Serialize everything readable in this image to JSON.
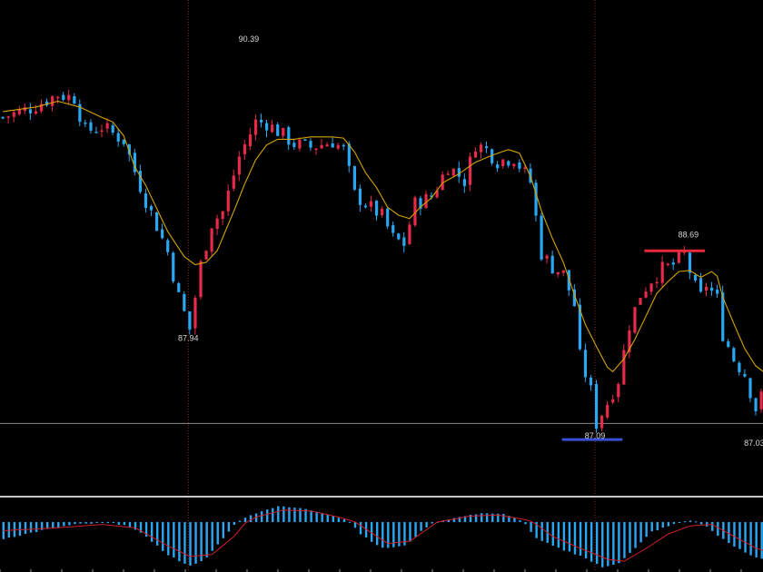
{
  "chart_data": [
    {
      "type": "candlestick",
      "title": "",
      "ylim": [
        86.5,
        90.8
      ],
      "grid": false,
      "colors": {
        "up": "#e8294a",
        "down": "#2aa7f3",
        "ma": "#d4a300",
        "support": "#3a4fd8",
        "resistance": "#e8293a",
        "vline": "#8a1f1f",
        "hline": "#8a8a8a"
      },
      "annotations": [
        {
          "text": "90.39",
          "index": 45,
          "value": 90.39
        },
        {
          "text": "87.94",
          "index": 34,
          "value": 87.94
        },
        {
          "text": "88.69",
          "index": 125,
          "value": 88.69
        },
        {
          "text": "87.09",
          "index": 108,
          "value": 87.09
        },
        {
          "text": "87.03",
          "index": 137,
          "value": 87.03
        }
      ],
      "reference_level": 87.12,
      "resistance_line": {
        "value": 88.62,
        "from_index": 117,
        "to_index": 128
      },
      "support_line": {
        "value": 86.98,
        "from_index": 102,
        "to_index": 113
      },
      "vertical_marker_indices": [
        34,
        108
      ],
      "close_path": [
        [
          0,
          89.78
        ],
        [
          5,
          89.86
        ],
        [
          10,
          89.98
        ],
        [
          13,
          89.95
        ],
        [
          15,
          89.66
        ],
        [
          18,
          89.7
        ],
        [
          22,
          89.58
        ],
        [
          24,
          89.31
        ],
        [
          26,
          89.06
        ],
        [
          28,
          88.84
        ],
        [
          30,
          88.61
        ],
        [
          32,
          88.22
        ],
        [
          34,
          87.94
        ],
        [
          36,
          88.5
        ],
        [
          38,
          88.86
        ],
        [
          40,
          88.96
        ],
        [
          43,
          89.44
        ],
        [
          46,
          89.74
        ],
        [
          48,
          89.73
        ],
        [
          50,
          89.66
        ],
        [
          53,
          89.55
        ],
        [
          56,
          89.52
        ],
        [
          60,
          89.57
        ],
        [
          62,
          89.5
        ],
        [
          64,
          89.11
        ],
        [
          66,
          89.03
        ],
        [
          69,
          88.92
        ],
        [
          71,
          88.73
        ],
        [
          73,
          88.68
        ],
        [
          75,
          89.03
        ],
        [
          78,
          89.09
        ],
        [
          81,
          89.36
        ],
        [
          84,
          89.23
        ],
        [
          86,
          89.55
        ],
        [
          88,
          89.5
        ],
        [
          90,
          89.4
        ],
        [
          93,
          89.43
        ],
        [
          96,
          89.22
        ],
        [
          98,
          88.6
        ],
        [
          100,
          88.48
        ],
        [
          102,
          88.42
        ],
        [
          104,
          88.15
        ],
        [
          105,
          87.7
        ],
        [
          107,
          87.4
        ],
        [
          108,
          87.12
        ],
        [
          110,
          87.3
        ],
        [
          112,
          87.5
        ],
        [
          114,
          87.98
        ],
        [
          116,
          88.24
        ],
        [
          118,
          88.37
        ],
        [
          120,
          88.46
        ],
        [
          122,
          88.5
        ],
        [
          124,
          88.59
        ],
        [
          126,
          88.3
        ],
        [
          127,
          88.22
        ],
        [
          128,
          88.33
        ],
        [
          130,
          88.2
        ],
        [
          131,
          87.9
        ],
        [
          133,
          87.68
        ],
        [
          135,
          87.55
        ],
        [
          137,
          87.25
        ],
        [
          139,
          87.45
        ]
      ],
      "moving_average": [
        [
          0,
          89.83
        ],
        [
          6,
          89.87
        ],
        [
          10,
          89.92
        ],
        [
          14,
          89.87
        ],
        [
          18,
          89.78
        ],
        [
          20,
          89.74
        ],
        [
          22,
          89.62
        ],
        [
          24,
          89.35
        ],
        [
          26,
          89.19
        ],
        [
          28,
          88.99
        ],
        [
          30,
          88.79
        ],
        [
          33,
          88.57
        ],
        [
          35,
          88.5
        ],
        [
          37,
          88.52
        ],
        [
          39,
          88.62
        ],
        [
          42,
          88.96
        ],
        [
          44,
          89.2
        ],
        [
          46,
          89.41
        ],
        [
          48,
          89.54
        ],
        [
          50,
          89.59
        ],
        [
          53,
          89.59
        ],
        [
          56,
          89.61
        ],
        [
          60,
          89.61
        ],
        [
          62,
          89.6
        ],
        [
          64,
          89.48
        ],
        [
          66,
          89.3
        ],
        [
          68,
          89.17
        ],
        [
          70,
          89.0
        ],
        [
          72,
          88.93
        ],
        [
          74,
          88.9
        ],
        [
          76,
          89.0
        ],
        [
          78,
          89.08
        ],
        [
          80,
          89.21
        ],
        [
          83,
          89.29
        ],
        [
          86,
          89.39
        ],
        [
          89,
          89.45
        ],
        [
          92,
          89.5
        ],
        [
          94,
          89.47
        ],
        [
          96,
          89.27
        ],
        [
          98,
          88.97
        ],
        [
          100,
          88.73
        ],
        [
          102,
          88.52
        ],
        [
          104,
          88.24
        ],
        [
          106,
          87.98
        ],
        [
          108,
          87.79
        ],
        [
          110,
          87.61
        ],
        [
          111,
          87.57
        ],
        [
          113,
          87.68
        ],
        [
          115,
          87.85
        ],
        [
          117,
          88.05
        ],
        [
          119,
          88.25
        ],
        [
          121,
          88.35
        ],
        [
          123,
          88.44
        ],
        [
          125,
          88.45
        ],
        [
          127,
          88.39
        ],
        [
          129,
          88.44
        ],
        [
          130,
          88.4
        ],
        [
          131,
          88.22
        ],
        [
          133,
          87.99
        ],
        [
          135,
          87.77
        ],
        [
          137,
          87.62
        ],
        [
          139,
          87.55
        ]
      ]
    },
    {
      "type": "histogram",
      "title": "",
      "ylim": [
        -1,
        1
      ],
      "colors": {
        "bars": "#2aa7f3",
        "signal": "#d0202a"
      },
      "histogram_path": [
        [
          0,
          -0.35
        ],
        [
          8,
          -0.15
        ],
        [
          13,
          -0.05
        ],
        [
          18,
          -0.02
        ],
        [
          22,
          -0.05
        ],
        [
          26,
          -0.3
        ],
        [
          30,
          -0.7
        ],
        [
          34,
          -0.92
        ],
        [
          37,
          -0.75
        ],
        [
          41,
          -0.2
        ],
        [
          45,
          0.35
        ],
        [
          50,
          0.8
        ],
        [
          54,
          0.7
        ],
        [
          58,
          0.45
        ],
        [
          62,
          0.15
        ],
        [
          65,
          -0.25
        ],
        [
          69,
          -0.55
        ],
        [
          73,
          -0.5
        ],
        [
          77,
          -0.1
        ],
        [
          82,
          0.2
        ],
        [
          87,
          0.45
        ],
        [
          91,
          0.4
        ],
        [
          94,
          0.1
        ],
        [
          97,
          -0.35
        ],
        [
          101,
          -0.55
        ],
        [
          105,
          -0.7
        ],
        [
          109,
          -0.95
        ],
        [
          112,
          -0.85
        ],
        [
          115,
          -0.55
        ],
        [
          118,
          -0.2
        ],
        [
          122,
          -0.05
        ],
        [
          125,
          0.08
        ],
        [
          128,
          -0.1
        ],
        [
          132,
          -0.45
        ],
        [
          136,
          -0.7
        ],
        [
          139,
          -0.8
        ]
      ],
      "signal_path": [
        [
          0,
          -0.18
        ],
        [
          10,
          -0.12
        ],
        [
          18,
          -0.05
        ],
        [
          24,
          -0.12
        ],
        [
          30,
          -0.5
        ],
        [
          34,
          -0.72
        ],
        [
          38,
          -0.68
        ],
        [
          42,
          -0.3
        ],
        [
          46,
          0.25
        ],
        [
          51,
          0.6
        ],
        [
          56,
          0.55
        ],
        [
          61,
          0.25
        ],
        [
          66,
          -0.15
        ],
        [
          70,
          -0.45
        ],
        [
          74,
          -0.4
        ],
        [
          79,
          0.0
        ],
        [
          85,
          0.3
        ],
        [
          90,
          0.35
        ],
        [
          95,
          0.12
        ],
        [
          100,
          -0.3
        ],
        [
          105,
          -0.55
        ],
        [
          110,
          -0.78
        ],
        [
          113,
          -0.82
        ],
        [
          117,
          -0.55
        ],
        [
          121,
          -0.25
        ],
        [
          125,
          -0.08
        ],
        [
          129,
          -0.05
        ],
        [
          133,
          -0.3
        ],
        [
          137,
          -0.55
        ],
        [
          139,
          -0.62
        ]
      ]
    }
  ]
}
